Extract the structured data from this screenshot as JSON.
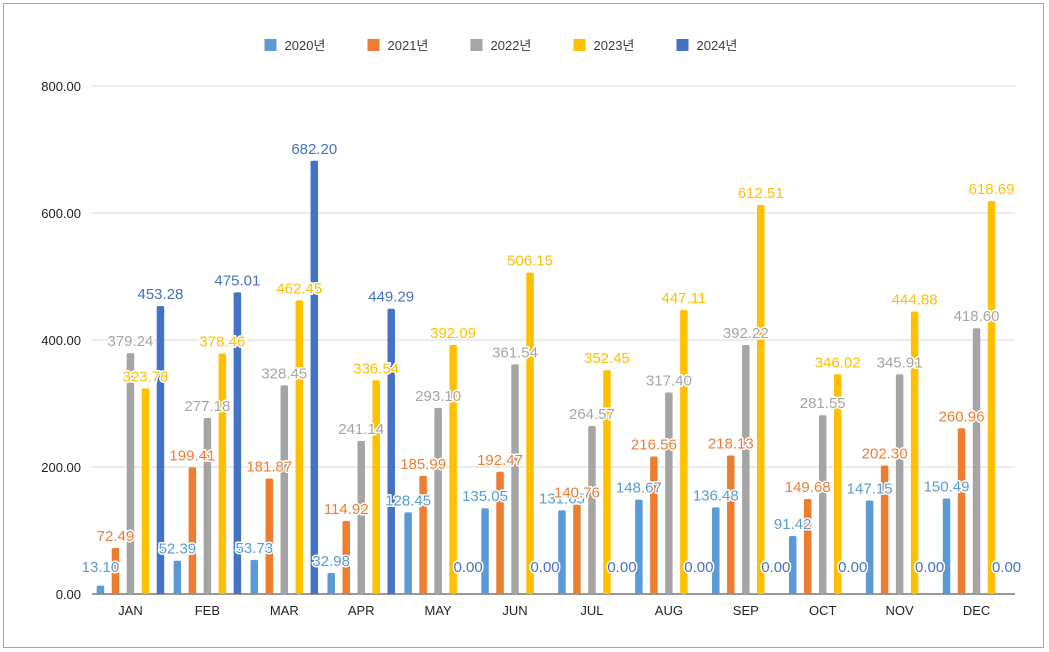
{
  "chart_data": {
    "type": "bar",
    "categories": [
      "JAN",
      "FEB",
      "MAR",
      "APR",
      "MAY",
      "JUN",
      "JUL",
      "AUG",
      "SEP",
      "OCT",
      "NOV",
      "DEC"
    ],
    "series": [
      {
        "name": "2020년",
        "color": "#5b9bd5",
        "values": [
          13.1,
          52.39,
          53.73,
          32.98,
          128.45,
          135.05,
          131.65,
          148.67,
          136.48,
          91.42,
          147.15,
          150.49
        ]
      },
      {
        "name": "2021년",
        "color": "#ed7d31",
        "values": [
          72.49,
          199.41,
          181.87,
          114.92,
          185.99,
          192.47,
          140.76,
          216.56,
          218.13,
          149.68,
          202.3,
          260.96
        ]
      },
      {
        "name": "2022년",
        "color": "#a5a5a5",
        "values": [
          379.24,
          277.18,
          328.45,
          241.14,
          293.1,
          361.54,
          264.57,
          317.4,
          392.22,
          281.55,
          345.91,
          418.6
        ]
      },
      {
        "name": "2023년",
        "color": "#ffc000",
        "values": [
          323.78,
          378.46,
          462.45,
          336.54,
          392.09,
          506.15,
          352.45,
          447.11,
          612.51,
          346.02,
          444.88,
          618.69
        ]
      },
      {
        "name": "2024년",
        "color": "#4472c4",
        "values": [
          453.28,
          475.01,
          682.2,
          449.29,
          0.0,
          0.0,
          0.0,
          0.0,
          0.0,
          0.0,
          0.0,
          0.0
        ]
      }
    ],
    "yticks": [
      "0.00",
      "200.00",
      "400.00",
      "600.00",
      "800.00"
    ],
    "ylim": [
      0,
      800
    ],
    "grid": true,
    "legend": "top-center",
    "title": "",
    "xlabel": "",
    "ylabel": ""
  }
}
